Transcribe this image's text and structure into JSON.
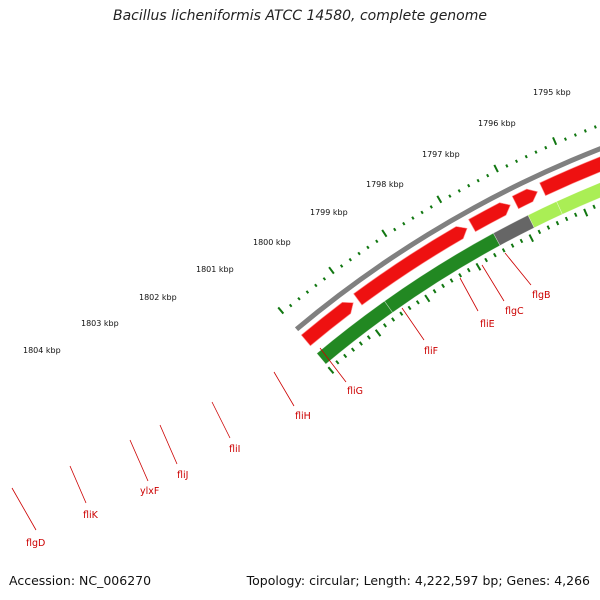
{
  "title": "Bacillus licheniformis ATCC 14580, complete genome",
  "footer": {
    "accession": "Accession: NC_006270",
    "topology": "Topology: circular; Length: 4,222,597 bp; Genes: 4,266"
  },
  "colors": {
    "backbone": "#808080",
    "forward_gene": "#ee1111",
    "reverse_gene": "#228822",
    "gc_light": "#aaee55",
    "gc_dark": "#666666",
    "gc_orange": "#ff8800",
    "gc_khaki": "#bbbb77",
    "tick": "#117711",
    "label": "#cc0000"
  },
  "kbp_labels": [
    "1795 kbp",
    "1796 kbp",
    "1797 kbp",
    "1798 kbp",
    "1799 kbp",
    "1800 kbp",
    "1801 kbp",
    "1802 kbp",
    "1803 kbp",
    "1804 kbp"
  ],
  "gene_labels": [
    "flgB",
    "flgC",
    "fliE",
    "fliF",
    "fliG",
    "fliH",
    "fliI",
    "fliJ",
    "ylxF",
    "fliK",
    "flgD"
  ]
}
